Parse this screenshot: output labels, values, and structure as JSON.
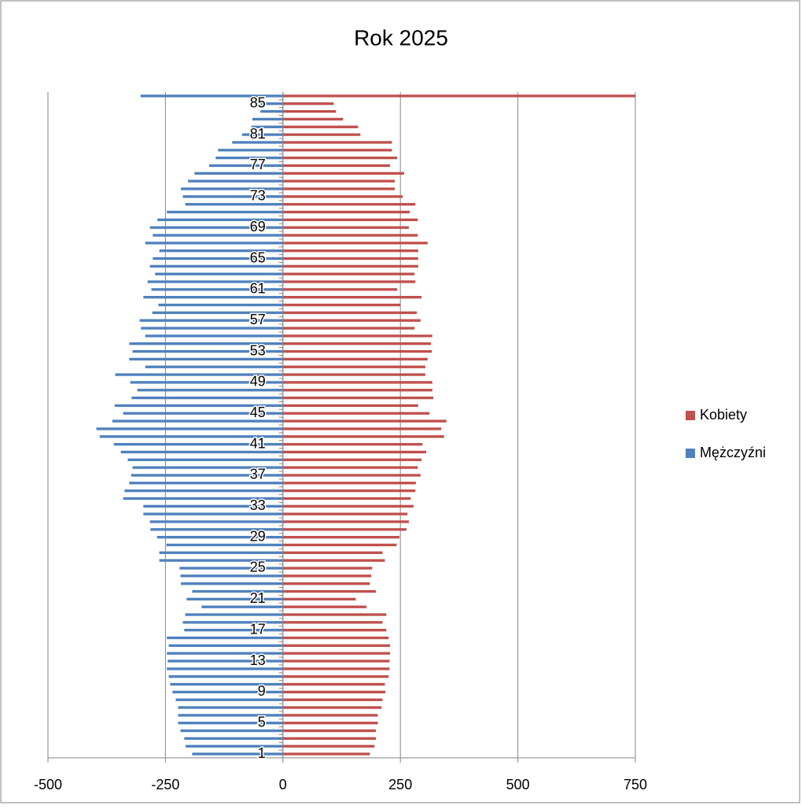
{
  "chart_data": {
    "type": "bar",
    "orientation": "horizontal",
    "title": "Rok 2025",
    "categories": [
      1,
      null,
      null,
      null,
      5,
      null,
      null,
      null,
      9,
      null,
      null,
      null,
      13,
      null,
      null,
      null,
      17,
      null,
      null,
      null,
      21,
      null,
      null,
      null,
      25,
      null,
      null,
      null,
      29,
      null,
      null,
      null,
      33,
      null,
      null,
      null,
      37,
      null,
      null,
      null,
      41,
      null,
      null,
      null,
      45,
      null,
      null,
      null,
      49,
      null,
      null,
      null,
      53,
      null,
      null,
      null,
      57,
      null,
      null,
      null,
      61,
      null,
      null,
      null,
      65,
      null,
      null,
      null,
      69,
      null,
      null,
      null,
      73,
      null,
      null,
      null,
      77,
      null,
      null,
      null,
      81,
      null,
      null,
      null,
      85,
      null
    ],
    "series": [
      {
        "name": "Kobiety",
        "color": "#c0504d",
        "values": [
          185,
          195,
          198,
          198,
          202,
          202,
          210,
          212,
          218,
          217,
          225,
          227,
          227,
          228,
          228,
          225,
          220,
          212,
          220,
          178,
          155,
          198,
          185,
          188,
          190,
          217,
          212,
          242,
          248,
          263,
          268,
          265,
          278,
          272,
          282,
          283,
          293,
          287,
          295,
          305,
          297,
          343,
          337,
          348,
          312,
          288,
          320,
          318,
          318,
          303,
          303,
          308,
          317,
          315,
          318,
          280,
          293,
          285,
          250,
          295,
          243,
          282,
          280,
          288,
          288,
          288,
          308,
          287,
          268,
          287,
          270,
          282,
          255,
          238,
          238,
          258,
          228,
          243,
          232,
          232,
          165,
          160,
          128,
          113,
          108,
          750
        ]
      },
      {
        "name": "Mężczyźni",
        "color": "#4f81bd",
        "values": [
          -193,
          -207,
          -210,
          -218,
          -223,
          -223,
          -223,
          -228,
          -235,
          -240,
          -243,
          -247,
          -245,
          -247,
          -243,
          -247,
          -210,
          -213,
          -208,
          -173,
          -205,
          -193,
          -217,
          -218,
          -220,
          -263,
          -263,
          -248,
          -268,
          -282,
          -283,
          -297,
          -297,
          -340,
          -337,
          -327,
          -323,
          -320,
          -330,
          -345,
          -360,
          -390,
          -397,
          -363,
          -340,
          -358,
          -322,
          -310,
          -325,
          -357,
          -293,
          -327,
          -320,
          -327,
          -293,
          -302,
          -305,
          -278,
          -265,
          -297,
          -280,
          -288,
          -272,
          -283,
          -277,
          -263,
          -293,
          -277,
          -283,
          -267,
          -247,
          -208,
          -213,
          -217,
          -202,
          -188,
          -157,
          -143,
          -138,
          -108,
          -87,
          -67,
          -65,
          -48,
          -60,
          -303
        ]
      }
    ],
    "xlim": [
      -500,
      750
    ],
    "xticks": [
      -500,
      -250,
      0,
      250,
      500,
      750
    ],
    "grid": true,
    "legend": "right"
  }
}
